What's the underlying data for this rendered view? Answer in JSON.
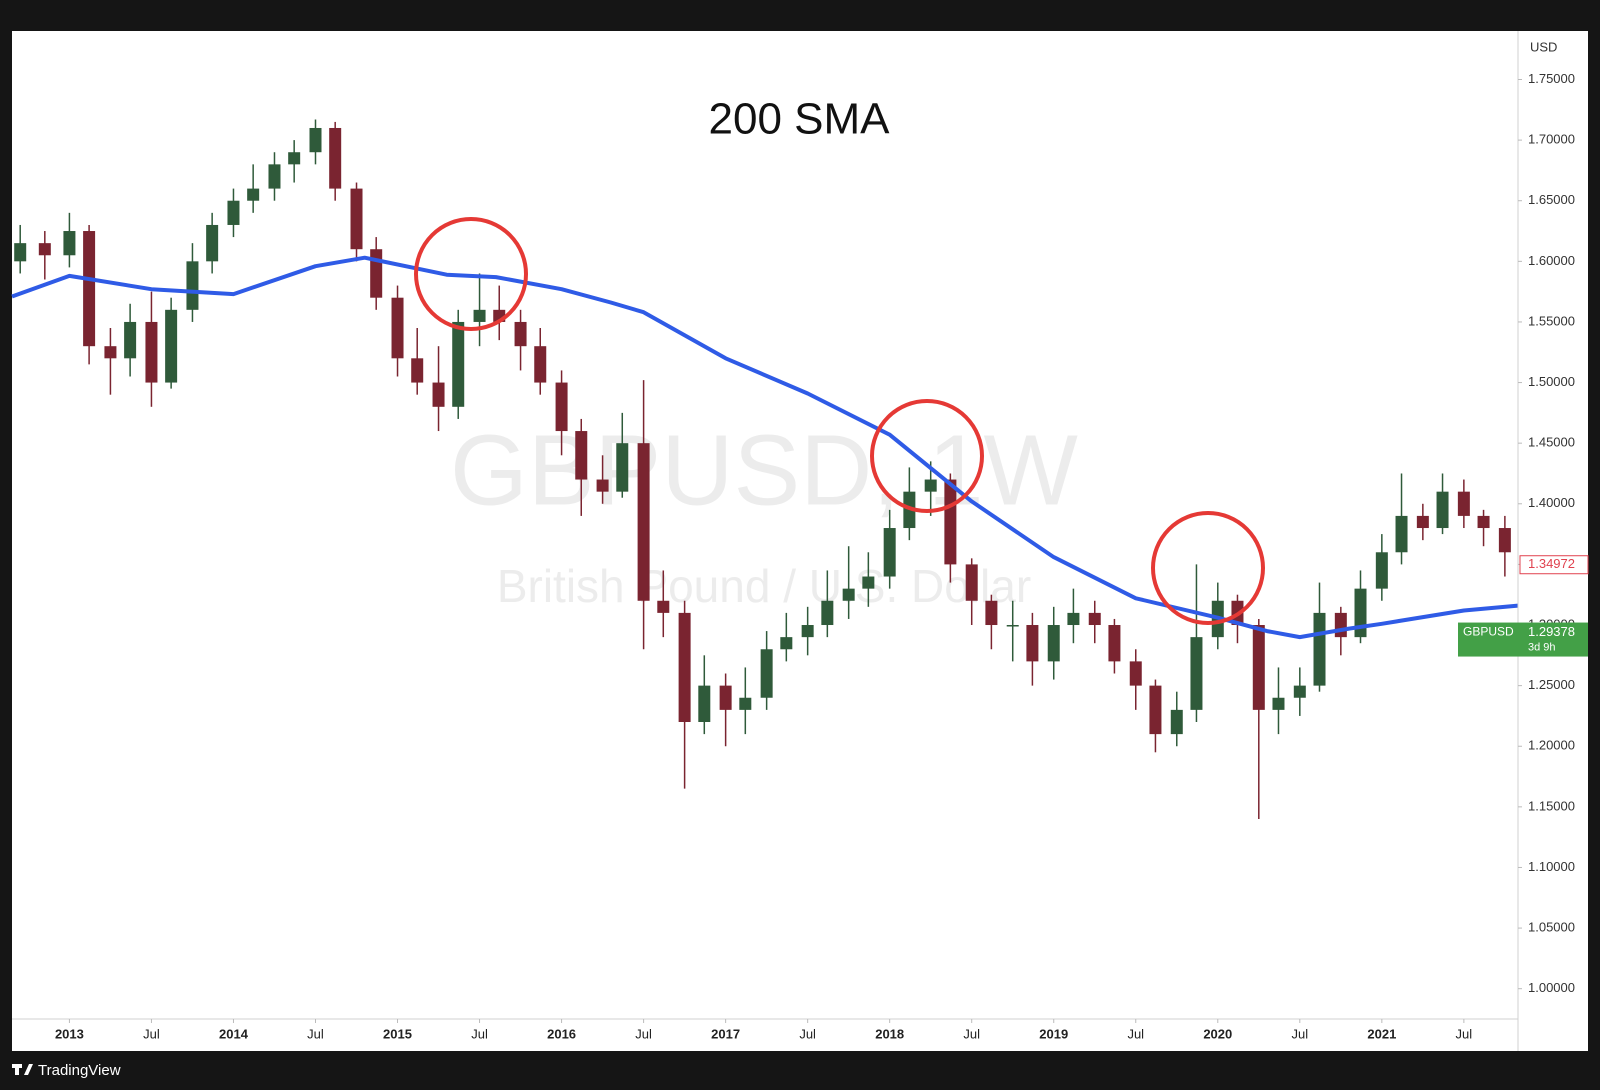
{
  "chart_data": {
    "type": "candlestick",
    "title": "200 SMA",
    "symbol_watermark": "GBPUSD, 1W",
    "description_watermark": "British Pound / U.S. Dollar",
    "currency": "USD",
    "brand": "TradingView",
    "up_color": "#2f5a3a",
    "down_color": "#7a2430",
    "x": [
      2012.7,
      2012.85,
      2013.0,
      2013.12,
      2013.25,
      2013.37,
      2013.5,
      2013.62,
      2013.75,
      2013.87,
      2014.0,
      2014.12,
      2014.25,
      2014.37,
      2014.5,
      2014.62,
      2014.75,
      2014.87,
      2015.0,
      2015.12,
      2015.25,
      2015.37,
      2015.5,
      2015.62,
      2015.75,
      2015.87,
      2016.0,
      2016.12,
      2016.25,
      2016.37,
      2016.5,
      2016.62,
      2016.75,
      2016.87,
      2017.0,
      2017.12,
      2017.25,
      2017.37,
      2017.5,
      2017.62,
      2017.75,
      2017.87,
      2018.0,
      2018.12,
      2018.25,
      2018.37,
      2018.5,
      2018.62,
      2018.75,
      2018.87,
      2019.0,
      2019.12,
      2019.25,
      2019.37,
      2019.5,
      2019.62,
      2019.75,
      2019.87,
      2020.0,
      2020.12,
      2020.25,
      2020.37,
      2020.5,
      2020.62,
      2020.75,
      2020.87,
      2021.0,
      2021.12,
      2021.25,
      2021.37,
      2021.5,
      2021.62,
      2021.75
    ],
    "open": [
      1.6,
      1.615,
      1.605,
      1.625,
      1.53,
      1.52,
      1.55,
      1.5,
      1.56,
      1.6,
      1.63,
      1.65,
      1.66,
      1.68,
      1.69,
      1.71,
      1.66,
      1.61,
      1.57,
      1.52,
      1.5,
      1.48,
      1.55,
      1.56,
      1.55,
      1.53,
      1.5,
      1.46,
      1.42,
      1.41,
      1.45,
      1.32,
      1.31,
      1.22,
      1.25,
      1.23,
      1.24,
      1.28,
      1.29,
      1.3,
      1.32,
      1.33,
      1.34,
      1.38,
      1.41,
      1.42,
      1.35,
      1.32,
      1.3,
      1.3,
      1.27,
      1.3,
      1.31,
      1.3,
      1.27,
      1.25,
      1.21,
      1.23,
      1.29,
      1.32,
      1.3,
      1.23,
      1.24,
      1.25,
      1.31,
      1.29,
      1.33,
      1.36,
      1.39,
      1.38,
      1.41,
      1.39,
      1.38
    ],
    "high": [
      1.63,
      1.625,
      1.64,
      1.63,
      1.545,
      1.565,
      1.575,
      1.57,
      1.615,
      1.64,
      1.66,
      1.68,
      1.69,
      1.7,
      1.717,
      1.715,
      1.665,
      1.62,
      1.58,
      1.545,
      1.53,
      1.56,
      1.59,
      1.58,
      1.56,
      1.545,
      1.51,
      1.47,
      1.44,
      1.475,
      1.502,
      1.345,
      1.32,
      1.275,
      1.26,
      1.265,
      1.295,
      1.31,
      1.315,
      1.345,
      1.365,
      1.36,
      1.395,
      1.43,
      1.435,
      1.425,
      1.355,
      1.325,
      1.32,
      1.31,
      1.315,
      1.33,
      1.32,
      1.305,
      1.28,
      1.255,
      1.245,
      1.35,
      1.335,
      1.325,
      1.305,
      1.265,
      1.265,
      1.335,
      1.315,
      1.345,
      1.375,
      1.425,
      1.4,
      1.425,
      1.42,
      1.395,
      1.39
    ],
    "low": [
      1.59,
      1.585,
      1.595,
      1.515,
      1.49,
      1.505,
      1.48,
      1.495,
      1.55,
      1.59,
      1.62,
      1.64,
      1.65,
      1.665,
      1.68,
      1.65,
      1.6,
      1.56,
      1.505,
      1.49,
      1.46,
      1.47,
      1.53,
      1.535,
      1.51,
      1.49,
      1.44,
      1.39,
      1.4,
      1.405,
      1.28,
      1.29,
      1.165,
      1.21,
      1.2,
      1.21,
      1.23,
      1.27,
      1.275,
      1.29,
      1.305,
      1.315,
      1.33,
      1.37,
      1.39,
      1.335,
      1.3,
      1.28,
      1.27,
      1.25,
      1.255,
      1.285,
      1.285,
      1.26,
      1.23,
      1.195,
      1.2,
      1.22,
      1.28,
      1.285,
      1.14,
      1.21,
      1.225,
      1.245,
      1.275,
      1.285,
      1.32,
      1.35,
      1.37,
      1.375,
      1.38,
      1.365,
      1.34
    ],
    "close": [
      1.615,
      1.605,
      1.625,
      1.53,
      1.52,
      1.55,
      1.5,
      1.56,
      1.6,
      1.63,
      1.65,
      1.66,
      1.68,
      1.69,
      1.71,
      1.66,
      1.61,
      1.57,
      1.52,
      1.5,
      1.48,
      1.55,
      1.56,
      1.55,
      1.53,
      1.5,
      1.46,
      1.42,
      1.41,
      1.45,
      1.32,
      1.31,
      1.22,
      1.25,
      1.23,
      1.24,
      1.28,
      1.29,
      1.3,
      1.32,
      1.33,
      1.34,
      1.38,
      1.41,
      1.42,
      1.35,
      1.32,
      1.3,
      1.3,
      1.27,
      1.3,
      1.31,
      1.3,
      1.27,
      1.25,
      1.21,
      1.23,
      1.29,
      1.32,
      1.3,
      1.23,
      1.24,
      1.25,
      1.31,
      1.29,
      1.33,
      1.36,
      1.39,
      1.38,
      1.41,
      1.39,
      1.38,
      1.36
    ],
    "sma": {
      "color": "#2f5be6",
      "x": [
        2012.65,
        2013.0,
        2013.5,
        2014.0,
        2014.5,
        2014.8,
        2015.3,
        2015.6,
        2016.0,
        2016.3,
        2016.5,
        2017.0,
        2017.5,
        2018.0,
        2018.5,
        2019.0,
        2019.5,
        2020.0,
        2020.3,
        2020.5,
        2020.8,
        2021.0,
        2021.5,
        2021.83
      ],
      "values": [
        1.571,
        1.588,
        1.577,
        1.573,
        1.596,
        1.603,
        1.589,
        1.587,
        1.577,
        1.566,
        1.558,
        1.52,
        1.491,
        1.457,
        1.402,
        1.356,
        1.322,
        1.306,
        1.295,
        1.29,
        1.297,
        1.301,
        1.312,
        1.316
      ]
    },
    "price_labels": [
      {
        "value": 1.34972,
        "color": "#e0424f"
      },
      {
        "value": 1.29378,
        "symbol": "GBPUSD",
        "countdown": "3d 9h",
        "color": "#43a047"
      }
    ],
    "xlim": [
      2012.65,
      2021.83
    ],
    "ylim": [
      0.975,
      1.79
    ],
    "xticks": [
      2013,
      {
        "value": 2013.5,
        "label": "Jul"
      },
      2014,
      {
        "value": 2014.5,
        "label": "Jul"
      },
      2015,
      {
        "value": 2015.5,
        "label": "Jul"
      },
      2016,
      {
        "value": 2016.5,
        "label": "Jul"
      },
      2017,
      {
        "value": 2017.5,
        "label": "Jul"
      },
      2018,
      {
        "value": 2018.5,
        "label": "Jul"
      },
      2019,
      {
        "value": 2019.5,
        "label": "Jul"
      },
      2020,
      {
        "value": 2020.5,
        "label": "Jul"
      },
      2021,
      {
        "value": 2021.5,
        "label": "Jul"
      }
    ],
    "yticks": [
      {
        "value": 1.0,
        "label": "1.00000"
      },
      {
        "value": 1.05,
        "label": "1.05000"
      },
      {
        "value": 1.1,
        "label": "1.10000"
      },
      {
        "value": 1.15,
        "label": "1.15000"
      },
      {
        "value": 1.2,
        "label": "1.20000"
      },
      {
        "value": 1.25,
        "label": "1.25000"
      },
      {
        "value": 1.3,
        "label": "1.30000"
      },
      {
        "value": 1.35,
        "label": "1.35000"
      },
      {
        "value": 1.4,
        "label": "1.40000"
      },
      {
        "value": 1.45,
        "label": "1.45000"
      },
      {
        "value": 1.5,
        "label": "1.50000"
      },
      {
        "value": 1.55,
        "label": "1.55000"
      },
      {
        "value": 1.6,
        "label": "1.60000"
      },
      {
        "value": 1.65,
        "label": "1.65000"
      },
      {
        "value": 1.7,
        "label": "1.70000"
      },
      {
        "value": 1.75,
        "label": "1.75000"
      }
    ]
  }
}
